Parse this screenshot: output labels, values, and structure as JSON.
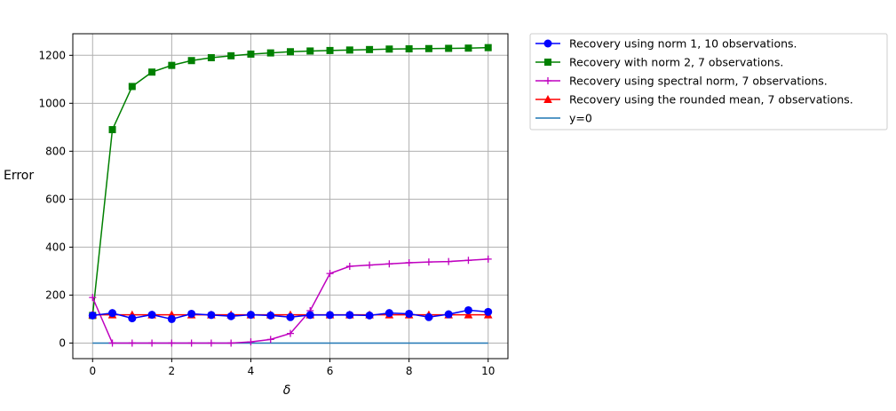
{
  "chart_data": {
    "type": "line",
    "xlabel": "δ",
    "ylabel": "Error",
    "xlim": [
      -0.5,
      10.5
    ],
    "ylim": [
      -65,
      1290
    ],
    "grid": true,
    "legend_position": "outside-top-right",
    "x_ticks": [
      0,
      2,
      4,
      6,
      8,
      10
    ],
    "y_ticks": [
      0,
      200,
      400,
      600,
      800,
      1000,
      1200
    ],
    "x_tick_labels": [
      "0",
      "2",
      "4",
      "6",
      "8",
      "10"
    ],
    "y_tick_labels": [
      "0",
      "200",
      "400",
      "600",
      "800",
      "1000",
      "1200"
    ],
    "x": [
      0,
      0.5,
      1,
      1.5,
      2,
      2.5,
      3,
      3.5,
      4,
      4.5,
      5,
      5.5,
      6,
      6.5,
      7,
      7.5,
      8,
      8.5,
      9,
      9.5,
      10
    ],
    "series": [
      {
        "name": "Recovery using norm 1, 10 observations.",
        "color": "#0000ff",
        "marker": "circle",
        "values": [
          115,
          125,
          103,
          118,
          100,
          122,
          117,
          112,
          118,
          115,
          108,
          117,
          117,
          117,
          115,
          125,
          122,
          108,
          120,
          137,
          130
        ]
      },
      {
        "name": "Recovery with norm 2, 7 observations.",
        "color": "#008000",
        "marker": "square",
        "values": [
          115,
          890,
          1070,
          1130,
          1158,
          1178,
          1190,
          1198,
          1205,
          1210,
          1215,
          1218,
          1220,
          1222,
          1224,
          1226,
          1227,
          1228,
          1229,
          1230,
          1232
        ]
      },
      {
        "name": "Recovery using spectral norm, 7 observations.",
        "color": "#bf00bf",
        "marker": "plus",
        "values": [
          190,
          0,
          0,
          0,
          0,
          0,
          0,
          0,
          5,
          15,
          40,
          135,
          290,
          320,
          325,
          330,
          335,
          338,
          340,
          345,
          350
        ]
      },
      {
        "name": "Recovery using the rounded mean, 7 observations.",
        "color": "#ff0000",
        "marker": "triangle",
        "values": [
          118,
          118,
          118,
          118,
          118,
          118,
          118,
          118,
          118,
          118,
          118,
          118,
          118,
          118,
          118,
          118,
          118,
          118,
          118,
          118,
          118
        ]
      },
      {
        "name": "y=0",
        "color": "#1f77b4",
        "marker": "none",
        "values": [
          0,
          0,
          0,
          0,
          0,
          0,
          0,
          0,
          0,
          0,
          0,
          0,
          0,
          0,
          0,
          0,
          0,
          0,
          0,
          0,
          0
        ]
      }
    ]
  }
}
